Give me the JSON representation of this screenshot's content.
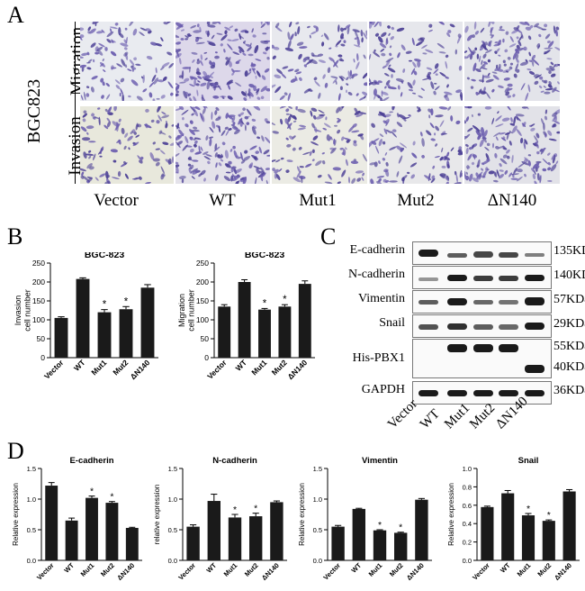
{
  "panel_a": {
    "letter": "A",
    "cell_line": "BGC823",
    "row_labels": [
      "Migration",
      "Invasion"
    ],
    "conditions": [
      "Vector",
      "WT",
      "Mut1",
      "Mut2",
      "ΔN140"
    ]
  },
  "panel_b": {
    "letter": "B",
    "significance_marker": "*"
  },
  "panel_c": {
    "letter": "C",
    "blots": [
      {
        "label": "E-cadherin",
        "kda": "135KDa"
      },
      {
        "label": "N-cadherin",
        "kda": "140KDa"
      },
      {
        "label": "Vimentin",
        "kda": "57KDa"
      },
      {
        "label": "Snail",
        "kda": "29KDa"
      },
      {
        "label": "His-PBX1",
        "kda": "55KDa",
        "kda2": "40KDa"
      },
      {
        "label": "GAPDH",
        "kda": "36KDa"
      }
    ],
    "lanes": [
      "Vector",
      "WT",
      "Mut1",
      "Mut2",
      "ΔN140"
    ]
  },
  "panel_d": {
    "letter": "D"
  },
  "chart_data": [
    {
      "type": "bar",
      "title": "BGC-823",
      "ylabel": "Invasion cell number",
      "categories": [
        "Vector",
        "WT",
        "Mut1",
        "Mut2",
        "ΔN140"
      ],
      "values": [
        105,
        208,
        120,
        128,
        185
      ],
      "errors": [
        3,
        3,
        7,
        7,
        8
      ],
      "significant": [
        false,
        false,
        true,
        true,
        false
      ],
      "ylim": [
        0,
        250
      ],
      "yticks": [
        0,
        50,
        100,
        150,
        200,
        250
      ]
    },
    {
      "type": "bar",
      "title": "BGC-823",
      "ylabel": "Migration cell number",
      "categories": [
        "Vector",
        "WT",
        "Mut1",
        "Mut2",
        "ΔN140"
      ],
      "values": [
        135,
        200,
        127,
        135,
        195
      ],
      "errors": [
        5,
        6,
        3,
        5,
        8
      ],
      "significant": [
        false,
        false,
        true,
        true,
        false
      ],
      "ylim": [
        0,
        250
      ],
      "yticks": [
        0,
        50,
        100,
        150,
        200,
        250
      ]
    },
    {
      "type": "bar",
      "title": "E-cadherin",
      "ylabel": "Relative expression",
      "categories": [
        "Vector",
        "WT",
        "Mut1",
        "Mut2",
        "ΔN140"
      ],
      "values": [
        1.22,
        0.65,
        1.02,
        0.94,
        0.53
      ],
      "errors": [
        0.05,
        0.04,
        0.03,
        0.02,
        0.01
      ],
      "significant": [
        false,
        false,
        true,
        true,
        false
      ],
      "ylim": [
        0,
        1.5
      ],
      "yticks": [
        "0.0",
        "0.5",
        "1.0",
        "1.5"
      ]
    },
    {
      "type": "bar",
      "title": "N-cadherin",
      "ylabel": "relative expression",
      "categories": [
        "Vector",
        "WT",
        "Mut1",
        "Mut2",
        "ΔN140"
      ],
      "values": [
        0.55,
        0.97,
        0.7,
        0.72,
        0.95
      ],
      "errors": [
        0.03,
        0.11,
        0.05,
        0.05,
        0.02
      ],
      "significant": [
        false,
        false,
        true,
        true,
        false
      ],
      "ylim": [
        0,
        1.5
      ],
      "yticks": [
        "0.0",
        "0.5",
        "1.0",
        "1.5"
      ]
    },
    {
      "type": "bar",
      "title": "Vimentin",
      "ylabel": "Relative expression",
      "categories": [
        "Vector",
        "WT",
        "Mut1",
        "Mut2",
        "ΔN140"
      ],
      "values": [
        0.55,
        0.84,
        0.49,
        0.45,
        0.99
      ],
      "errors": [
        0.02,
        0.01,
        0.01,
        0.01,
        0.02
      ],
      "significant": [
        false,
        false,
        true,
        true,
        false
      ],
      "ylim": [
        0,
        1.5
      ],
      "yticks": [
        "0.0",
        "0.5",
        "1.0",
        "1.5"
      ]
    },
    {
      "type": "bar",
      "title": "Snail",
      "ylabel": "Relative expression",
      "categories": [
        "Vector",
        "WT",
        "Mut1",
        "Mut2",
        "ΔN140"
      ],
      "values": [
        0.58,
        0.73,
        0.49,
        0.43,
        0.75
      ],
      "errors": [
        0.01,
        0.03,
        0.02,
        0.01,
        0.02
      ],
      "significant": [
        false,
        false,
        true,
        true,
        false
      ],
      "ylim": [
        0,
        1.0
      ],
      "yticks": [
        "0.0",
        "0.2",
        "0.4",
        "0.6",
        "0.8",
        "1.0"
      ]
    }
  ]
}
